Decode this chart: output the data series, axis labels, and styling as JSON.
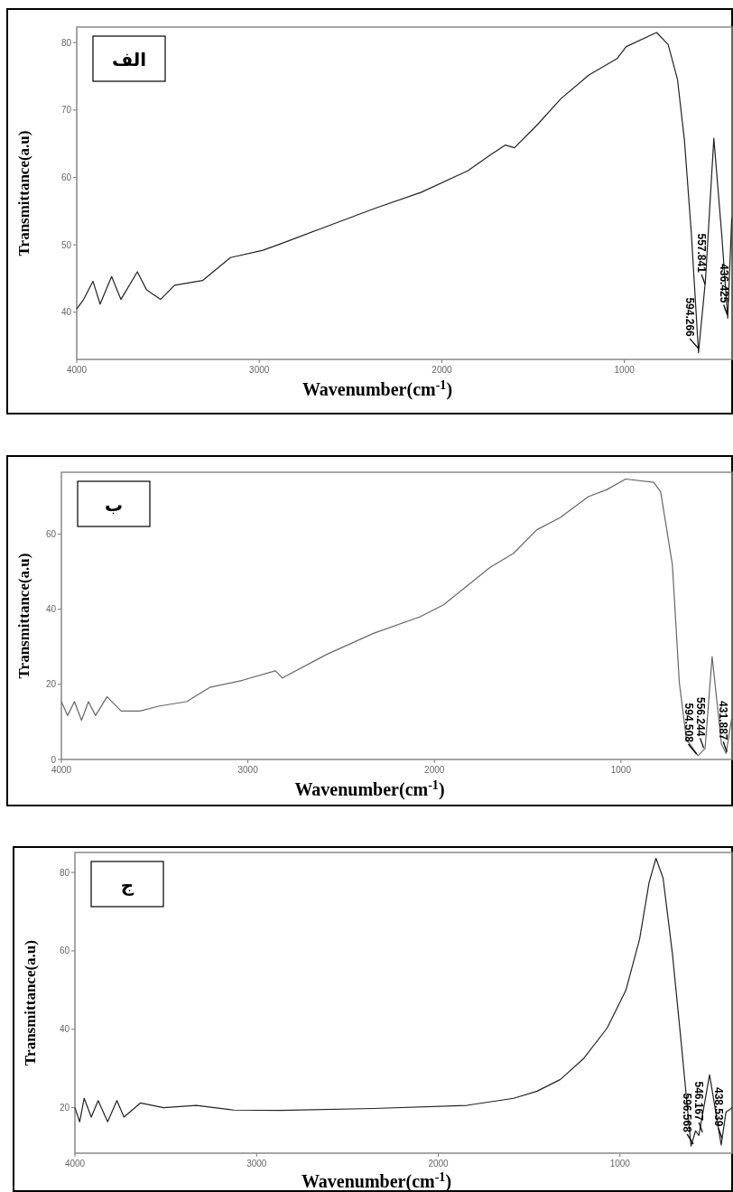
{
  "chart_data": [
    {
      "type": "line",
      "title": "الف",
      "xlabel": "Wavenumber(cm$^{-1}$)",
      "ylabel": "Transmittance(a.u)",
      "xlim": [
        4000,
        410
      ],
      "ylim": [
        33,
        82.3
      ],
      "xticks": [
        4000,
        3000,
        2000,
        1000
      ],
      "yticks": [
        40,
        50,
        60,
        70,
        80
      ],
      "grid": false,
      "series": [
        {
          "color": "#222222",
          "x": [
            4000,
            3962,
            3911,
            3872,
            3809,
            3758,
            3668,
            3617,
            3541,
            3464,
            3311,
            3158,
            2980,
            2878,
            2673,
            2367,
            2112,
            1857,
            1730,
            1653,
            1602,
            1474,
            1347,
            1194,
            1041,
            990,
            824,
            760,
            709,
            671,
            633,
            594,
            556,
            510,
            467,
            434,
            412
          ],
          "values": [
            40.5,
            41.9,
            44.6,
            41.2,
            45.3,
            41.9,
            46.0,
            43.3,
            41.9,
            44.0,
            44.7,
            48.1,
            49.2,
            50.2,
            52.3,
            55.4,
            57.8,
            61.0,
            63.4,
            64.8,
            64.4,
            67.9,
            71.7,
            75.2,
            77.6,
            79.4,
            81.5,
            79.7,
            74.5,
            65.5,
            51.6,
            34.0,
            44.7,
            65.8,
            51.6,
            39.1,
            54.0
          ]
        }
      ],
      "annotations": [
        {
          "text": "594.266",
          "x": 594.266,
          "y": 34.5
        },
        {
          "text": "557.841",
          "x": 557.841,
          "y": 44
        },
        {
          "text": "436.425",
          "x": 436.425,
          "y": 39.5
        }
      ]
    },
    {
      "type": "line",
      "title": "ب",
      "xlabel": "Wavenumber(cm$^{-1}$)",
      "ylabel": "Transmittance(a.u)",
      "xlim": [
        4000,
        404
      ],
      "ylim": [
        0,
        76.5
      ],
      "xticks": [
        4000,
        3000,
        2000,
        1000
      ],
      "yticks": [
        0,
        20,
        40,
        60
      ],
      "grid": false,
      "series": [
        {
          "color": "#666666",
          "x": [
            4000,
            3967,
            3930,
            3892,
            3855,
            3817,
            3755,
            3679,
            3579,
            3479,
            3329,
            3204,
            3028,
            2853,
            2815,
            2577,
            2327,
            2077,
            1951,
            1826,
            1701,
            1576,
            1451,
            1326,
            1175,
            1075,
            975,
            824,
            787,
            724,
            687,
            649,
            587,
            549,
            511,
            461,
            436,
            404
          ],
          "values": [
            15.4,
            11.7,
            15.4,
            10.4,
            15.4,
            11.7,
            16.7,
            12.9,
            12.9,
            14.2,
            15.4,
            19.2,
            21.1,
            23.6,
            21.7,
            28.0,
            33.6,
            38.0,
            41.2,
            46.2,
            51.2,
            54.9,
            61.2,
            64.4,
            70.0,
            71.9,
            74.7,
            73.8,
            71.3,
            51.8,
            20.5,
            5.4,
            1.0,
            2.9,
            27.4,
            4.1,
            1.6,
            11.7
          ]
        }
      ],
      "annotations": [
        {
          "text": "594.508",
          "x": 594.508,
          "y": 1.2
        },
        {
          "text": "556.244",
          "x": 556.244,
          "y": 2.8
        },
        {
          "text": "431.887",
          "x": 431.887,
          "y": 1.8
        }
      ]
    },
    {
      "type": "line",
      "title": "ج",
      "xlabel": "Wavenumber(cm$^{-1}$)",
      "ylabel": "Transmittance(a.u)",
      "xlim": [
        4000,
        383
      ],
      "ylim": [
        8.4,
        85.1
      ],
      "xticks": [
        4000,
        3000,
        2000,
        1000
      ],
      "yticks": [
        20,
        40,
        60,
        80
      ],
      "grid": false,
      "series": [
        {
          "color": "#222222",
          "x": [
            4000,
            3974,
            3949,
            3910,
            3872,
            3820,
            3769,
            3730,
            3640,
            3512,
            3332,
            3127,
            2870,
            2356,
            1842,
            1585,
            1457,
            1328,
            1199,
            1071,
            968,
            892,
            840,
            802,
            763,
            712,
            661,
            609,
            584,
            566,
            507,
            443,
            417,
            383
          ],
          "values": [
            20.0,
            16.4,
            22.4,
            17.6,
            21.8,
            16.4,
            21.8,
            17.6,
            21.2,
            20.0,
            20.6,
            19.4,
            19.3,
            19.8,
            20.6,
            22.4,
            24.2,
            27.2,
            32.6,
            40.3,
            49.9,
            63.0,
            77.4,
            83.6,
            78.6,
            59.5,
            35.6,
            10.2,
            14.1,
            12.9,
            28.4,
            10.5,
            18.8,
            20.0
          ]
        }
      ],
      "annotations": [
        {
          "text": "596.568",
          "x": 596.568,
          "y": 10.5
        },
        {
          "text": "546.167",
          "x": 546.167,
          "y": 13.5
        },
        {
          "text": "438.539",
          "x": 438.539,
          "y": 12
        }
      ]
    }
  ]
}
